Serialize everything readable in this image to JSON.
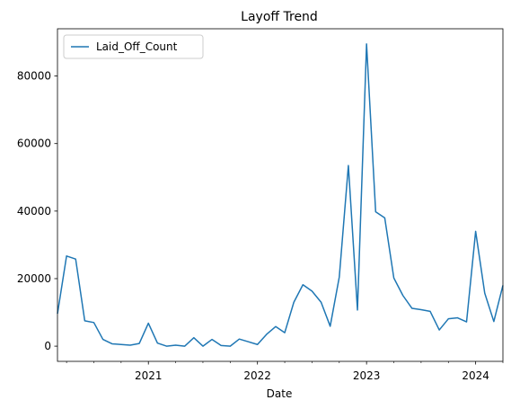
{
  "chart_data": {
    "type": "line",
    "title": "Layoff Trend",
    "xlabel": "Date",
    "ylabel": "",
    "ylim": [
      -4500,
      94000
    ],
    "xlim": [
      "2020-03",
      "2024-04"
    ],
    "grid": false,
    "legend_position": "top-left",
    "y_ticks": [
      0,
      20000,
      40000,
      60000,
      80000
    ],
    "x_major_ticks": [
      "2021-01",
      "2022-01",
      "2023-01",
      "2024-01"
    ],
    "x_tick_labels": [
      "2021",
      "2022",
      "2023",
      "2024"
    ],
    "series": [
      {
        "name": "Laid_Off_Count",
        "color": "#1f77b4",
        "x": [
          "2020-03",
          "2020-04",
          "2020-05",
          "2020-06",
          "2020-07",
          "2020-08",
          "2020-09",
          "2020-10",
          "2020-11",
          "2020-12",
          "2021-01",
          "2021-02",
          "2021-03",
          "2021-04",
          "2021-05",
          "2021-06",
          "2021-07",
          "2021-08",
          "2021-09",
          "2021-10",
          "2021-11",
          "2021-12",
          "2022-01",
          "2022-02",
          "2022-03",
          "2022-04",
          "2022-05",
          "2022-06",
          "2022-07",
          "2022-08",
          "2022-09",
          "2022-10",
          "2022-11",
          "2022-12",
          "2023-01",
          "2023-02",
          "2023-03",
          "2023-04",
          "2023-05",
          "2023-06",
          "2023-07",
          "2023-08",
          "2023-09",
          "2023-10",
          "2023-11",
          "2023-12",
          "2024-01",
          "2024-02",
          "2024-03",
          "2024-04"
        ],
        "values": [
          9600,
          26700,
          25800,
          7500,
          7000,
          2000,
          700,
          500,
          300,
          800,
          6800,
          900,
          0,
          300,
          0,
          2500,
          0,
          2000,
          200,
          0,
          2100,
          1300,
          500,
          3500,
          5800,
          4000,
          13000,
          18200,
          16300,
          13000,
          5900,
          20500,
          53500,
          10700,
          89500,
          39800,
          38000,
          20200,
          15000,
          11200,
          10800,
          10300,
          4800,
          8100,
          8400,
          7200,
          34000,
          15700,
          7300,
          18000
        ]
      }
    ]
  }
}
